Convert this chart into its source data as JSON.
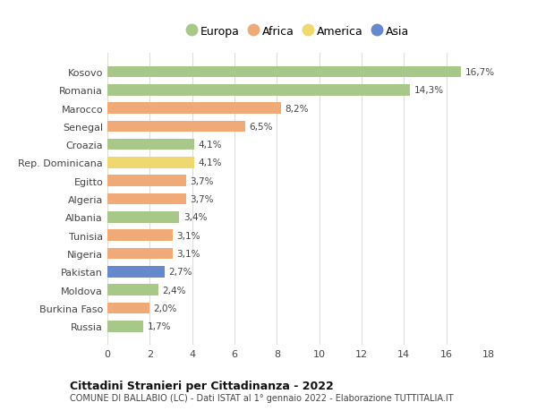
{
  "countries": [
    "Kosovo",
    "Romania",
    "Marocco",
    "Senegal",
    "Croazia",
    "Rep. Dominicana",
    "Egitto",
    "Algeria",
    "Albania",
    "Tunisia",
    "Nigeria",
    "Pakistan",
    "Moldova",
    "Burkina Faso",
    "Russia"
  ],
  "values": [
    16.7,
    14.3,
    8.2,
    6.5,
    4.1,
    4.1,
    3.7,
    3.7,
    3.4,
    3.1,
    3.1,
    2.7,
    2.4,
    2.0,
    1.7
  ],
  "labels": [
    "16,7%",
    "14,3%",
    "8,2%",
    "6,5%",
    "4,1%",
    "4,1%",
    "3,7%",
    "3,7%",
    "3,4%",
    "3,1%",
    "3,1%",
    "2,7%",
    "2,4%",
    "2,0%",
    "1,7%"
  ],
  "continents": [
    "Europa",
    "Europa",
    "Africa",
    "Africa",
    "Europa",
    "America",
    "Africa",
    "Africa",
    "Europa",
    "Africa",
    "Africa",
    "Asia",
    "Europa",
    "Africa",
    "Europa"
  ],
  "colors": {
    "Europa": "#a8c88a",
    "Africa": "#f0aa78",
    "America": "#f0d870",
    "Asia": "#6688cc"
  },
  "legend_order": [
    "Europa",
    "Africa",
    "America",
    "Asia"
  ],
  "title": "Cittadini Stranieri per Cittadinanza - 2022",
  "subtitle": "COMUNE DI BALLABIO (LC) - Dati ISTAT al 1° gennaio 2022 - Elaborazione TUTTITALIA.IT",
  "xlim": [
    0,
    18
  ],
  "xticks": [
    0,
    2,
    4,
    6,
    8,
    10,
    12,
    14,
    16,
    18
  ],
  "background_color": "#ffffff",
  "grid_color": "#dddddd"
}
